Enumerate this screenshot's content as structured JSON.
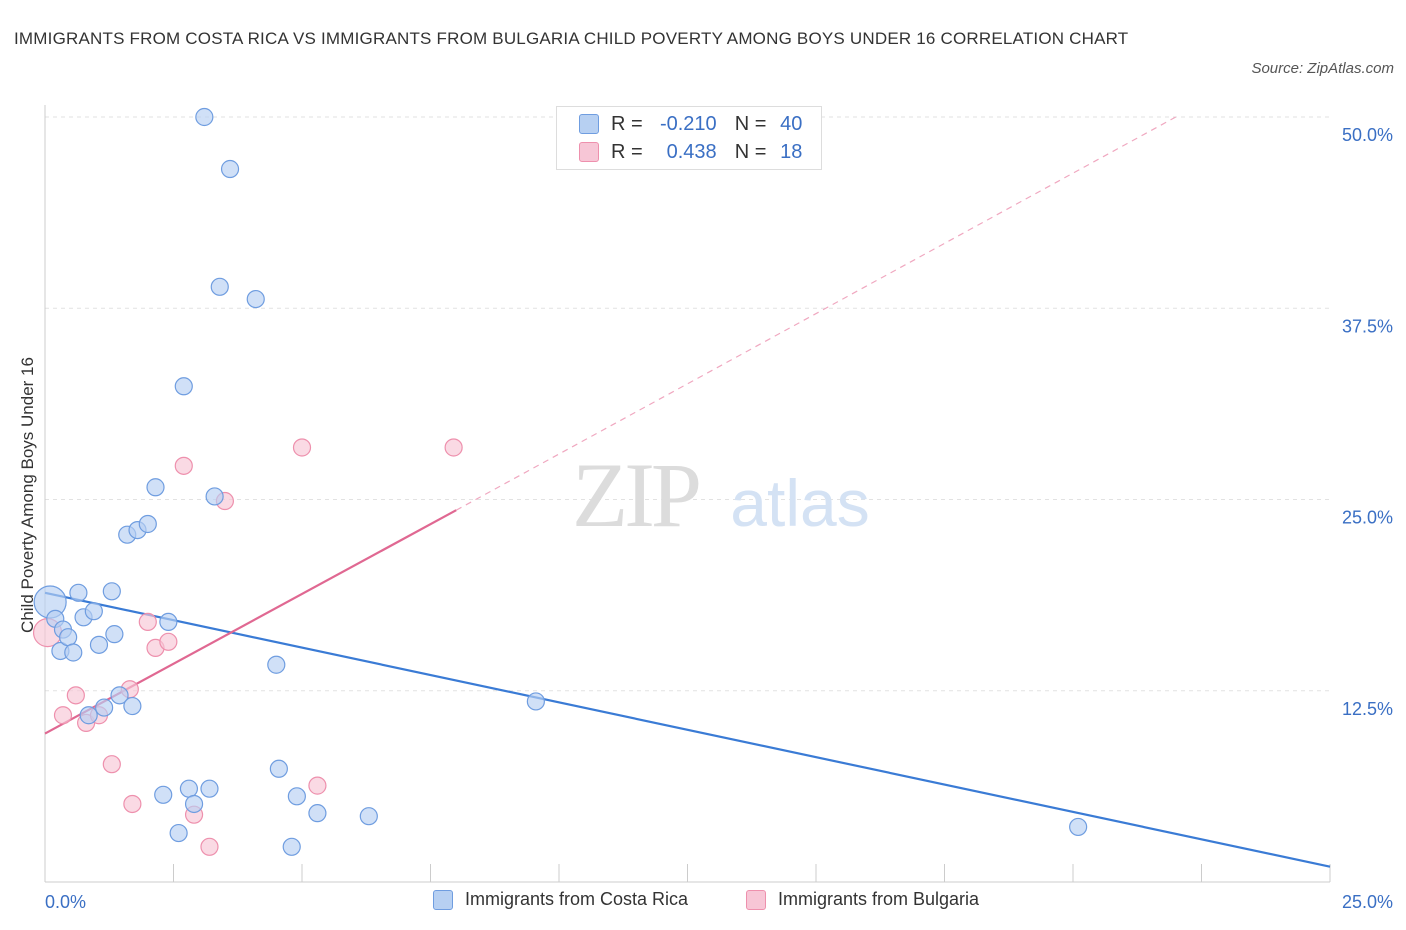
{
  "title": "IMMIGRANTS FROM COSTA RICA VS IMMIGRANTS FROM BULGARIA CHILD POVERTY AMONG BOYS UNDER 16 CORRELATION CHART",
  "source": "Source: ZipAtlas.com",
  "watermark": {
    "zip": "ZIP",
    "atlas": "atlas"
  },
  "legend": {
    "r_label": "R =",
    "n_label": "N =",
    "series": [
      {
        "r": "-0.210",
        "n": "40"
      },
      {
        "r": "0.438",
        "n": "18"
      }
    ]
  },
  "colors": {
    "costa_rica_fill": "#b7d0f2",
    "costa_rica_stroke": "#6f9de0",
    "costa_rica_line": "#3a7bd5",
    "bulgaria_fill": "#f7c6d6",
    "bulgaria_stroke": "#ee90ad",
    "bulgaria_line": "#e06892",
    "tick_label": "#3a6fc4"
  },
  "chart_data": {
    "type": "scatter",
    "title": "IMMIGRANTS FROM COSTA RICA VS IMMIGRANTS FROM BULGARIA CHILD POVERTY AMONG BOYS UNDER 16 CORRELATION CHART",
    "xlabel": "",
    "ylabel": "Child Poverty Among Boys Under 16",
    "xlim": [
      0,
      25
    ],
    "ylim": [
      0,
      50
    ],
    "x_tick_labels": [
      {
        "value": 0,
        "label": "0.0%"
      },
      {
        "value": 25,
        "label": "25.0%"
      }
    ],
    "y_tick_labels": [
      {
        "value": 12.5,
        "label": "12.5%"
      },
      {
        "value": 25,
        "label": "25.0%"
      },
      {
        "value": 37.5,
        "label": "37.5%"
      },
      {
        "value": 50,
        "label": "50.0%"
      }
    ],
    "grid": true,
    "series": [
      {
        "name": "Immigrants from Costa Rica",
        "r": -0.21,
        "n": 40,
        "points": [
          [
            0.1,
            18.3
          ],
          [
            0.2,
            17.2
          ],
          [
            0.3,
            15.1
          ],
          [
            0.35,
            16.5
          ],
          [
            0.45,
            16.0
          ],
          [
            0.55,
            15.0
          ],
          [
            0.65,
            18.9
          ],
          [
            0.75,
            17.3
          ],
          [
            0.85,
            10.9
          ],
          [
            0.95,
            17.7
          ],
          [
            1.05,
            15.5
          ],
          [
            1.15,
            11.4
          ],
          [
            1.3,
            19.0
          ],
          [
            1.35,
            16.2
          ],
          [
            1.45,
            12.2
          ],
          [
            1.6,
            22.7
          ],
          [
            1.7,
            11.5
          ],
          [
            1.8,
            23.0
          ],
          [
            2.0,
            23.4
          ],
          [
            2.15,
            25.8
          ],
          [
            2.3,
            5.7
          ],
          [
            2.4,
            17.0
          ],
          [
            2.6,
            3.2
          ],
          [
            2.7,
            32.4
          ],
          [
            2.8,
            6.1
          ],
          [
            2.9,
            5.1
          ],
          [
            3.1,
            50.0
          ],
          [
            3.2,
            6.1
          ],
          [
            3.3,
            25.2
          ],
          [
            3.4,
            38.9
          ],
          [
            3.6,
            46.6
          ],
          [
            4.1,
            38.1
          ],
          [
            4.5,
            14.2
          ],
          [
            4.55,
            7.4
          ],
          [
            4.8,
            2.3
          ],
          [
            4.9,
            5.6
          ],
          [
            5.3,
            4.5
          ],
          [
            6.3,
            4.3
          ],
          [
            9.55,
            11.8
          ],
          [
            20.1,
            3.6
          ]
        ],
        "trend": {
          "x": [
            0,
            25
          ],
          "y": [
            18.9,
            1.0
          ]
        }
      },
      {
        "name": "Immigrants from Bulgaria",
        "r": 0.438,
        "n": 18,
        "points": [
          [
            0.05,
            16.3
          ],
          [
            0.35,
            10.9
          ],
          [
            0.6,
            12.2
          ],
          [
            0.8,
            10.4
          ],
          [
            1.05,
            10.9
          ],
          [
            1.3,
            7.7
          ],
          [
            1.65,
            12.6
          ],
          [
            1.7,
            5.1
          ],
          [
            2.0,
            17.0
          ],
          [
            2.15,
            15.3
          ],
          [
            2.4,
            15.7
          ],
          [
            2.7,
            27.2
          ],
          [
            2.9,
            4.4
          ],
          [
            3.2,
            2.3
          ],
          [
            3.5,
            24.9
          ],
          [
            5.0,
            28.4
          ],
          [
            5.3,
            6.3
          ],
          [
            7.95,
            28.4
          ]
        ],
        "trend": {
          "x": [
            0,
            8.0
          ],
          "y": [
            9.7,
            24.3
          ]
        },
        "trend_extended": {
          "x": [
            8.0,
            22.0
          ],
          "y": [
            24.3,
            50.0
          ]
        }
      }
    ]
  },
  "bottom_legend": [
    {
      "label": "Immigrants from Costa Rica"
    },
    {
      "label": "Immigrants from Bulgaria"
    }
  ]
}
